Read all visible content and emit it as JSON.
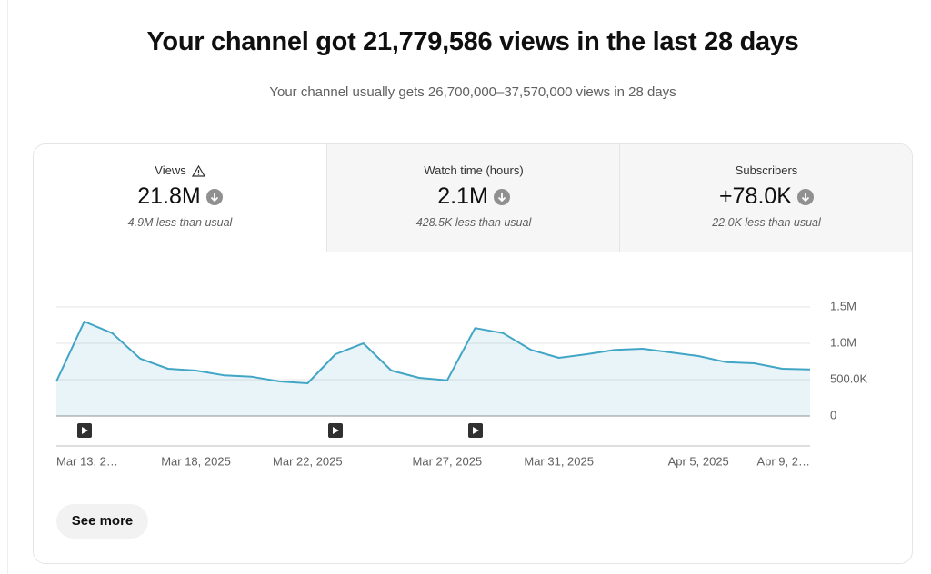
{
  "header": {
    "title": "Your channel got 21,779,586 views in the last 28 days",
    "subtitle": "Your channel usually gets 26,700,000–37,570,000 views in 28 days"
  },
  "tabs": [
    {
      "label": "Views",
      "value": "21.8M",
      "note": "4.9M less than usual"
    },
    {
      "label": "Watch time (hours)",
      "value": "2.1M",
      "note": "428.5K less than usual"
    },
    {
      "label": "Subscribers",
      "value": "+78.0K",
      "note": "22.0K less than usual"
    }
  ],
  "button": "See more",
  "chart_data": {
    "type": "line",
    "categories": [
      "Mar 13, 2…",
      null,
      null,
      null,
      null,
      "Mar 18, 2025",
      null,
      null,
      null,
      "Mar 22, 2025",
      null,
      null,
      null,
      null,
      "Mar 27, 2025",
      null,
      null,
      null,
      "Mar 31, 2025",
      null,
      null,
      null,
      null,
      "Apr 5, 2025",
      null,
      null,
      null,
      "Apr 9, 2…"
    ],
    "values": [
      475000,
      1300000,
      1140000,
      790000,
      650000,
      625000,
      560000,
      540000,
      475000,
      450000,
      850000,
      1000000,
      625000,
      525000,
      490000,
      1210000,
      1140000,
      910000,
      800000,
      850000,
      910000,
      925000,
      875000,
      825000,
      740000,
      725000,
      650000,
      640000
    ],
    "color": "#41a5c6",
    "ylim": [
      0,
      1500000
    ],
    "yticks": [
      0,
      {
        "value": 500000,
        "label": "500.0K"
      },
      {
        "value": 1000000,
        "label": "1.0M"
      },
      {
        "value": 1500000,
        "label": "1.5M"
      }
    ],
    "grid": true
  }
}
